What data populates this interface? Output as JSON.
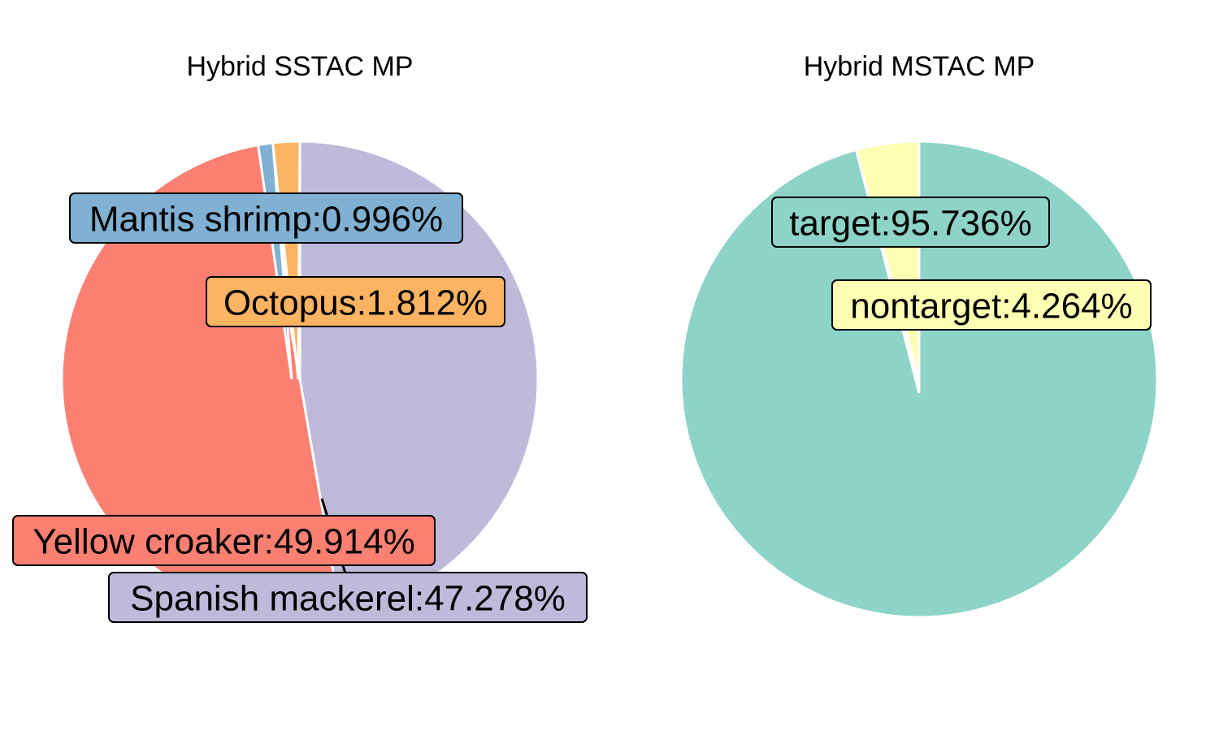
{
  "chart_data": [
    {
      "type": "pie",
      "title": "Hybrid SSTAC MP",
      "start_angle_deg": 90,
      "direction": "clockwise",
      "slices": [
        {
          "label": "Spanish mackerel:47.278%",
          "value": 47.278,
          "color": "#BEBADA"
        },
        {
          "label": "Yellow croaker:49.914%",
          "value": 49.914,
          "color": "#FB8072"
        },
        {
          "label": "Mantis shrimp:0.996%",
          "value": 0.996,
          "color": "#80B1D3"
        },
        {
          "label": "Octopus:1.812%",
          "value": 1.812,
          "color": "#FDB462"
        }
      ]
    },
    {
      "type": "pie",
      "title": "Hybrid MSTAC MP",
      "start_angle_deg": 90,
      "direction": "clockwise",
      "slices": [
        {
          "label": "target:95.736%",
          "value": 95.736,
          "color": "#8DD3C7"
        },
        {
          "label": "nontarget:4.264%",
          "value": 4.264,
          "color": "#FFFFB3"
        }
      ]
    }
  ]
}
